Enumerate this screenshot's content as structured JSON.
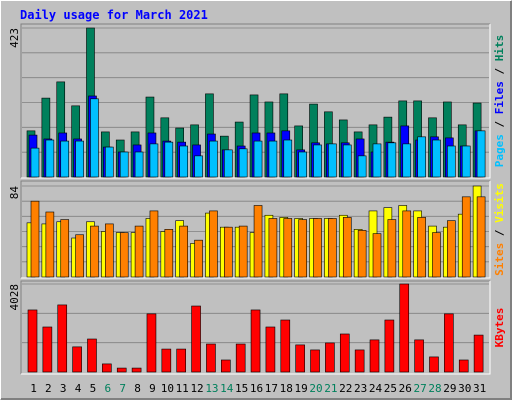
{
  "title": "Daily usage for March 2021",
  "legend_separator": " / ",
  "chart_data": [
    {
      "type": "bar",
      "ylim": [
        0,
        423
      ],
      "yticks": [
        423
      ],
      "series": [
        {
          "name": "Hits",
          "color": "#00805c",
          "values": [
            131,
            224,
            270,
            202,
            423,
            128,
            105,
            128,
            227,
            168,
            139,
            148,
            236,
            116,
            156,
            233,
            213,
            236,
            145,
            207,
            185,
            162,
            128,
            148,
            170,
            216,
            216,
            168,
            213,
            148,
            210
          ]
        },
        {
          "name": "Files",
          "color": "#0000ff",
          "values": [
            119,
            108,
            125,
            108,
            230,
            85,
            71,
            91,
            125,
            102,
            99,
            91,
            122,
            77,
            88,
            125,
            125,
            131,
            77,
            97,
            94,
            97,
            108,
            71,
            99,
            145,
            105,
            114,
            111,
            88,
            131
          ]
        },
        {
          "name": "Pages",
          "color": "#00c0ff",
          "values": [
            82,
            105,
            102,
            102,
            222,
            85,
            71,
            71,
            94,
            99,
            88,
            60,
            102,
            77,
            80,
            102,
            102,
            105,
            71,
            91,
            94,
            91,
            60,
            94,
            97,
            94,
            114,
            105,
            88,
            88,
            131
          ]
        }
      ]
    },
    {
      "type": "bar",
      "ylim": [
        0,
        84
      ],
      "yticks": [
        84
      ],
      "series": [
        {
          "name": "Visits",
          "color": "#ffff00",
          "values": [
            50,
            49,
            51,
            36,
            51,
            42,
            41,
            41,
            54,
            42,
            52,
            31,
            59,
            46,
            46,
            41,
            57,
            55,
            54,
            54,
            54,
            57,
            44,
            61,
            64,
            66,
            61,
            47,
            46,
            58,
            84
          ]
        },
        {
          "name": "Sites",
          "color": "#ff8000",
          "values": [
            70,
            60,
            53,
            39,
            47,
            49,
            41,
            47,
            61,
            44,
            47,
            34,
            61,
            46,
            47,
            66,
            54,
            54,
            53,
            54,
            54,
            55,
            43,
            40,
            53,
            61,
            55,
            41,
            52,
            74,
            74
          ]
        }
      ]
    },
    {
      "type": "bar",
      "ylim": [
        0,
        4028
      ],
      "yticks": [
        4028
      ],
      "series": [
        {
          "name": "KBytes",
          "color": "#ff0000",
          "values": [
            2840,
            2060,
            3070,
            1150,
            1510,
            370,
            180,
            180,
            2660,
            1050,
            1050,
            3020,
            1280,
            550,
            1280,
            2840,
            2060,
            2380,
            1240,
            1010,
            1330,
            1740,
            1010,
            1470,
            2380,
            4028,
            1470,
            690,
            2660,
            550,
            1690
          ]
        }
      ],
      "categories": [
        "1",
        "2",
        "3",
        "4",
        "5",
        "6",
        "7",
        "8",
        "9",
        "10",
        "11",
        "12",
        "13",
        "14",
        "15",
        "16",
        "17",
        "18",
        "19",
        "20",
        "21",
        "22",
        "23",
        "24",
        "25",
        "26",
        "27",
        "28",
        "29",
        "30",
        "31"
      ],
      "category_colors": [
        "#000000",
        "#000000",
        "#000000",
        "#000000",
        "#000000",
        "#00805c",
        "#00805c",
        "#000000",
        "#000000",
        "#000000",
        "#000000",
        "#000000",
        "#00805c",
        "#00805c",
        "#000000",
        "#000000",
        "#000000",
        "#000000",
        "#000000",
        "#00805c",
        "#00805c",
        "#000000",
        "#000000",
        "#000000",
        "#000000",
        "#000000",
        "#00805c",
        "#00805c",
        "#000000",
        "#000000",
        "#000000"
      ]
    }
  ]
}
